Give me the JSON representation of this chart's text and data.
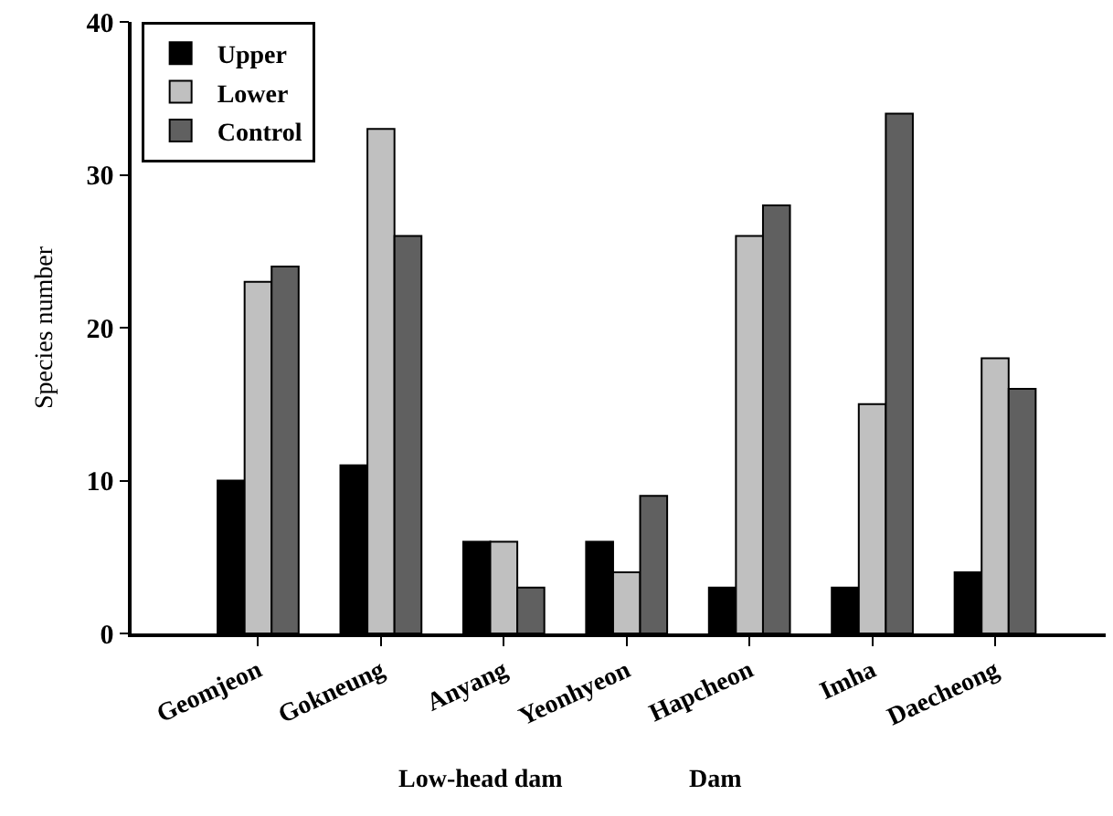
{
  "chart_data": {
    "type": "bar",
    "ylabel": "Species number",
    "categories": [
      "Geomjeon",
      "Gokneung",
      "Anyang",
      "Yeonhyeon",
      "Hapcheon",
      "Imha",
      "Daecheong"
    ],
    "series": [
      {
        "name": "Upper",
        "color": "#000000",
        "values": [
          10,
          11,
          6,
          6,
          3,
          3,
          4
        ]
      },
      {
        "name": "Lower",
        "color": "#c0c0c0",
        "values": [
          23,
          33,
          6,
          4,
          26,
          15,
          18
        ]
      },
      {
        "name": "Control",
        "color": "#606060",
        "values": [
          24,
          26,
          3,
          9,
          28,
          34,
          16
        ]
      }
    ],
    "annotations": [
      "Low-head dam",
      "Dam"
    ],
    "ylim": [
      0,
      40
    ],
    "yticks": [
      0,
      10,
      20,
      30,
      40
    ],
    "legend": "top left"
  }
}
